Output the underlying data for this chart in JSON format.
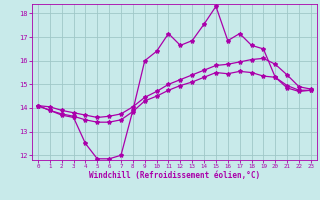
{
  "xlabel": "Windchill (Refroidissement éolien,°C)",
  "xlim": [
    -0.5,
    23.5
  ],
  "ylim": [
    11.8,
    18.4
  ],
  "yticks": [
    12,
    13,
    14,
    15,
    16,
    17,
    18
  ],
  "xticks": [
    0,
    1,
    2,
    3,
    4,
    5,
    6,
    7,
    8,
    9,
    10,
    11,
    12,
    13,
    14,
    15,
    16,
    17,
    18,
    19,
    20,
    21,
    22,
    23
  ],
  "background_color": "#c8eaea",
  "grid_color": "#a0c8c8",
  "line_color": "#aa00aa",
  "marker": "*",
  "marker_size": 3,
  "line_width": 0.9,
  "series": [
    [
      14.1,
      13.9,
      13.7,
      13.6,
      12.5,
      11.85,
      11.85,
      12.0,
      13.9,
      16.0,
      16.4,
      17.15,
      16.65,
      16.85,
      17.55,
      18.3,
      16.85,
      17.15,
      16.65,
      16.5,
      15.3,
      14.85,
      14.7,
      14.75
    ],
    [
      14.1,
      13.9,
      13.75,
      13.65,
      13.5,
      13.4,
      13.4,
      13.5,
      13.85,
      14.3,
      14.5,
      14.75,
      14.95,
      15.1,
      15.3,
      15.5,
      15.45,
      15.55,
      15.5,
      15.35,
      15.3,
      14.95,
      14.75,
      14.75
    ],
    [
      14.1,
      14.05,
      13.9,
      13.8,
      13.7,
      13.6,
      13.65,
      13.75,
      14.05,
      14.45,
      14.7,
      15.0,
      15.2,
      15.4,
      15.6,
      15.8,
      15.85,
      15.95,
      16.05,
      16.1,
      15.85,
      15.4,
      14.9,
      14.8
    ]
  ]
}
